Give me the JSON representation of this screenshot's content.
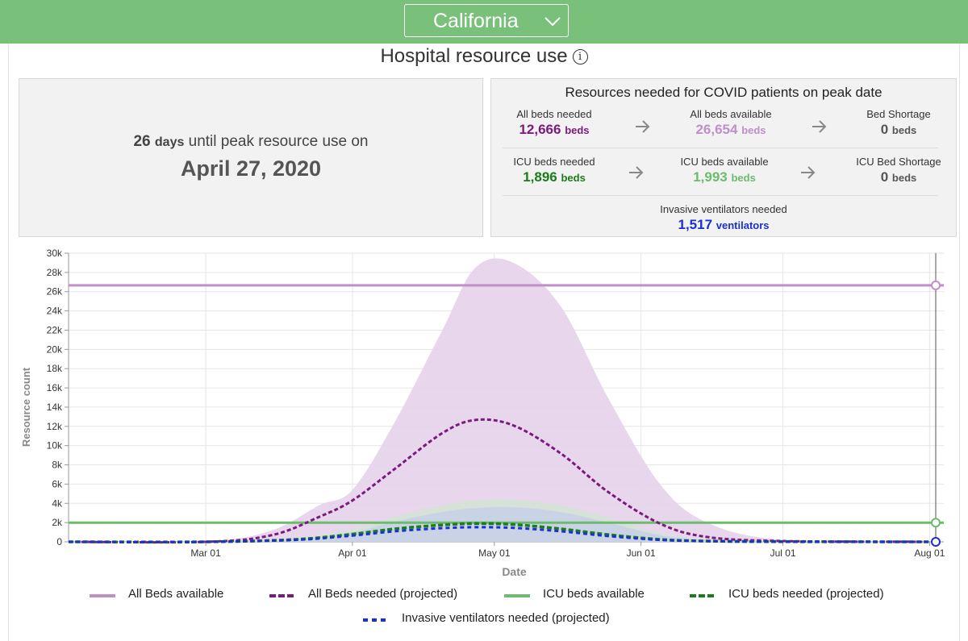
{
  "header": {
    "state_label": "California",
    "dropdown_icon": "chevron-down-icon"
  },
  "title": {
    "text": "Hospital resource use",
    "info_icon": "info-icon",
    "info_glyph": "i"
  },
  "peak": {
    "days_number": "26",
    "days_unit": "days",
    "days_text": "until peak resource use on",
    "date": "April 27, 2020"
  },
  "resources": {
    "title": "Resources needed for COVID patients on peak date",
    "rows": [
      {
        "needed": {
          "label": "All beds needed",
          "value": "12,666",
          "unit": "beds"
        },
        "available": {
          "label": "All beds available",
          "value": "26,654",
          "unit": "beds"
        },
        "shortage": {
          "label": "Bed Shortage",
          "value": "0",
          "unit": "beds"
        }
      },
      {
        "needed": {
          "label": "ICU beds needed",
          "value": "1,896",
          "unit": "beds"
        },
        "available": {
          "label": "ICU beds available",
          "value": "1,993",
          "unit": "beds"
        },
        "shortage": {
          "label": "ICU Bed Shortage",
          "value": "0",
          "unit": "beds"
        }
      }
    ],
    "ventilators": {
      "label": "Invasive ventilators needed",
      "value": "1,517",
      "unit": "ventilators"
    },
    "arrow_icon": "arrow-right-icon"
  },
  "colors": {
    "topbar": "#79c07a",
    "all_beds": "#7a1a7e",
    "all_beds_available": "#c08fca",
    "all_beds_band": "#e6d1ea",
    "icu": "#1a7d1a",
    "icu_available": "#6dbb6d",
    "icu_band": "#cfe6cf",
    "vent": "#1a2fd4",
    "vent_band": "#c2c9f0"
  },
  "chart_data": {
    "type": "line",
    "xlabel": "Date",
    "ylabel": "Resource count",
    "x_ticks": [
      "Mar 01",
      "Apr 01",
      "May 01",
      "Jun 01",
      "Jul 01",
      "Aug 01"
    ],
    "x_tick_dates": [
      "2020-03-01",
      "2020-04-01",
      "2020-05-01",
      "2020-06-01",
      "2020-07-01",
      "2020-08-01"
    ],
    "x_range": [
      "2020-02-01",
      "2020-08-04"
    ],
    "y_ticks": [
      "0",
      "2k",
      "4k",
      "6k",
      "8k",
      "10k",
      "12k",
      "14k",
      "16k",
      "18k",
      "20k",
      "22k",
      "24k",
      "26k",
      "28k",
      "30k"
    ],
    "ylim": [
      0,
      30000
    ],
    "grid": true,
    "legend_position": "bottom",
    "series": [
      {
        "name": "All Beds available",
        "style": "solid",
        "color": "#c08fca",
        "constant": 26654
      },
      {
        "name": "All Beds needed (projected)",
        "style": "dashed",
        "color": "#7a1a7e",
        "x": [
          "2020-02-01",
          "2020-03-01",
          "2020-03-15",
          "2020-03-25",
          "2020-04-01",
          "2020-04-10",
          "2020-04-20",
          "2020-04-27",
          "2020-05-05",
          "2020-05-15",
          "2020-05-25",
          "2020-06-05",
          "2020-06-15",
          "2020-07-01",
          "2020-08-01"
        ],
        "values": [
          0,
          0,
          700,
          2600,
          4300,
          7600,
          11300,
          12666,
          12100,
          9200,
          5200,
          1900,
          500,
          80,
          0
        ],
        "band_upper": [
          0,
          0,
          1200,
          3800,
          5400,
          12500,
          22000,
          28500,
          29000,
          24500,
          15000,
          6000,
          2000,
          200,
          0
        ]
      },
      {
        "name": "ICU beds available",
        "style": "solid",
        "color": "#6dbb6d",
        "constant": 1993
      },
      {
        "name": "ICU beds needed (projected)",
        "style": "dashed",
        "color": "#1a7d1a",
        "x": [
          "2020-02-01",
          "2020-03-01",
          "2020-03-20",
          "2020-04-01",
          "2020-04-10",
          "2020-04-20",
          "2020-04-27",
          "2020-05-05",
          "2020-05-15",
          "2020-05-25",
          "2020-06-05",
          "2020-06-15",
          "2020-07-01",
          "2020-08-01"
        ],
        "values": [
          0,
          0,
          250,
          800,
          1350,
          1750,
          1896,
          1800,
          1350,
          750,
          250,
          80,
          20,
          0
        ],
        "band_upper": [
          0,
          0,
          400,
          1300,
          2600,
          3800,
          4300,
          4400,
          3800,
          2500,
          900,
          250,
          40,
          0
        ]
      },
      {
        "name": "Invasive ventilators needed (projected)",
        "style": "dashed",
        "color": "#1a2fd4",
        "x": [
          "2020-02-01",
          "2020-03-01",
          "2020-03-20",
          "2020-04-01",
          "2020-04-10",
          "2020-04-20",
          "2020-04-27",
          "2020-05-05",
          "2020-05-15",
          "2020-05-25",
          "2020-06-05",
          "2020-06-15",
          "2020-07-01",
          "2020-08-01"
        ],
        "values": [
          0,
          0,
          200,
          650,
          1100,
          1420,
          1517,
          1450,
          1100,
          600,
          200,
          60,
          15,
          0
        ],
        "band_upper": [
          0,
          0,
          300,
          1000,
          2100,
          3100,
          3500,
          3600,
          3100,
          2000,
          700,
          200,
          30,
          0
        ]
      }
    ]
  },
  "legend": {
    "items": [
      {
        "label": "All Beds available",
        "style": "solid",
        "color": "#c08fca"
      },
      {
        "label": "All Beds needed (projected)",
        "style": "dashed",
        "color": "#7a1a7e"
      },
      {
        "label": "ICU beds available",
        "style": "solid",
        "color": "#6dbb6d"
      },
      {
        "label": "ICU beds needed (projected)",
        "style": "dashed",
        "color": "#1a7d1a"
      },
      {
        "label": "Invasive ventilators needed (projected)",
        "style": "dashed",
        "color": "#1a2fd4"
      }
    ]
  }
}
